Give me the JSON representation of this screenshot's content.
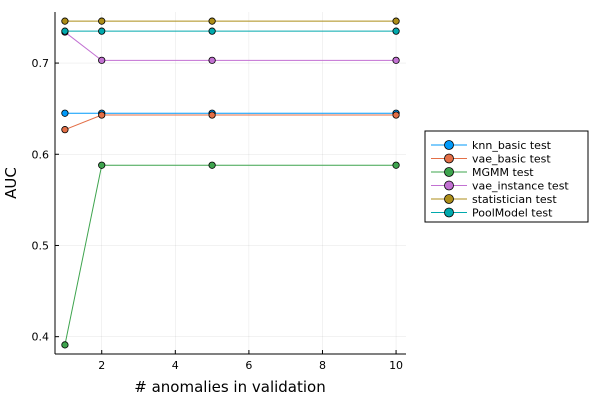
{
  "chart_data": {
    "type": "line",
    "xlabel": "# anomalies in validation",
    "ylabel": "AUC",
    "x": [
      1,
      2,
      5,
      10
    ],
    "xlim": [
      0.73,
      10.27
    ],
    "ylim": [
      0.381,
      0.756
    ],
    "xticks": [
      2,
      4,
      6,
      8,
      10
    ],
    "yticks": [
      0.4,
      0.5,
      0.6,
      0.7
    ],
    "xtick_labels": [
      "2",
      "4",
      "6",
      "8",
      "10"
    ],
    "ytick_labels": [
      "0.4",
      "0.5",
      "0.6",
      "0.7"
    ],
    "grid": true,
    "legend_position": "outside-right",
    "series": [
      {
        "name": "knn_basic test",
        "color": "#009AFA",
        "values": [
          0.645,
          0.645,
          0.645,
          0.645
        ]
      },
      {
        "name": "vae_basic test",
        "color": "#E36F47",
        "values": [
          0.627,
          0.643,
          0.643,
          0.643
        ]
      },
      {
        "name": "MGMM test",
        "color": "#3EA44E",
        "values": [
          0.391,
          0.588,
          0.588,
          0.588
        ]
      },
      {
        "name": "vae_instance test",
        "color": "#C271D2",
        "values": [
          0.734,
          0.703,
          0.703,
          0.703
        ]
      },
      {
        "name": "statistician test",
        "color": "#AC8D18",
        "values": [
          0.746,
          0.746,
          0.746,
          0.746
        ]
      },
      {
        "name": "PoolModel test",
        "color": "#00A9AD",
        "values": [
          0.735,
          0.735,
          0.735,
          0.735
        ]
      }
    ]
  }
}
